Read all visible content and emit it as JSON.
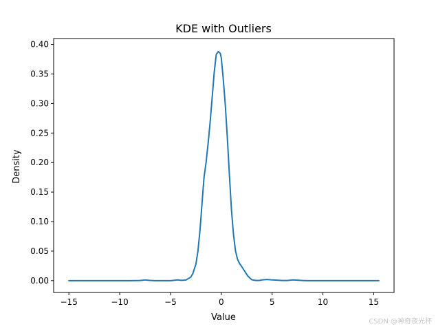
{
  "watermark": "CSDN @神奇夜光杯",
  "chart_data": {
    "type": "line",
    "title": "KDE with Outliers",
    "xlabel": "Value",
    "ylabel": "Density",
    "xlim": [
      -16.5,
      17
    ],
    "ylim": [
      -0.02,
      0.41
    ],
    "grid": false,
    "x_ticks": [
      -15,
      -10,
      -5,
      0,
      5,
      10,
      15
    ],
    "x_tick_labels": [
      "−15",
      "−10",
      "−5",
      "0",
      "5",
      "10",
      "15"
    ],
    "y_ticks": [
      0.0,
      0.05,
      0.1,
      0.15,
      0.2,
      0.25,
      0.3,
      0.35,
      0.4
    ],
    "y_tick_labels": [
      "0.00",
      "0.05",
      "0.10",
      "0.15",
      "0.20",
      "0.25",
      "0.30",
      "0.35",
      "0.40"
    ],
    "series": [
      {
        "color": "#1f77b4",
        "x": [
          -15,
          -12,
          -9,
          -8,
          -7.5,
          -7,
          -6.5,
          -6,
          -5,
          -4.5,
          -4.2,
          -4,
          -3.5,
          -3,
          -2.8,
          -2.5,
          -2.3,
          -2.1,
          -1.9,
          -1.7,
          -1.5,
          -1.3,
          -1.1,
          -0.9,
          -0.7,
          -0.5,
          -0.3,
          -0.1,
          0,
          0.2,
          0.4,
          0.6,
          0.8,
          1.0,
          1.2,
          1.4,
          1.6,
          1.8,
          2.0,
          2.3,
          2.6,
          3.0,
          3.3,
          3.6,
          3.8,
          4.0,
          4.5,
          5.0,
          5.5,
          6.0,
          6.5,
          7.0,
          7.5,
          8.0,
          8.5,
          10,
          12,
          15.5
        ],
        "y": [
          0.0,
          0.0,
          0.0,
          0.0003,
          0.0012,
          0.0004,
          0.0,
          0.0,
          0.0,
          0.0009,
          0.0012,
          0.0006,
          0.001,
          0.006,
          0.012,
          0.028,
          0.05,
          0.085,
          0.13,
          0.175,
          0.2,
          0.232,
          0.268,
          0.31,
          0.352,
          0.383,
          0.388,
          0.385,
          0.377,
          0.34,
          0.296,
          0.24,
          0.178,
          0.12,
          0.078,
          0.05,
          0.036,
          0.029,
          0.024,
          0.016,
          0.008,
          0.0015,
          0.0005,
          0.0003,
          0.0005,
          0.0012,
          0.002,
          0.0012,
          0.0008,
          0.0003,
          0.0003,
          0.0012,
          0.0008,
          0.0003,
          0.0,
          0.0,
          0.0,
          0.0
        ]
      }
    ]
  }
}
